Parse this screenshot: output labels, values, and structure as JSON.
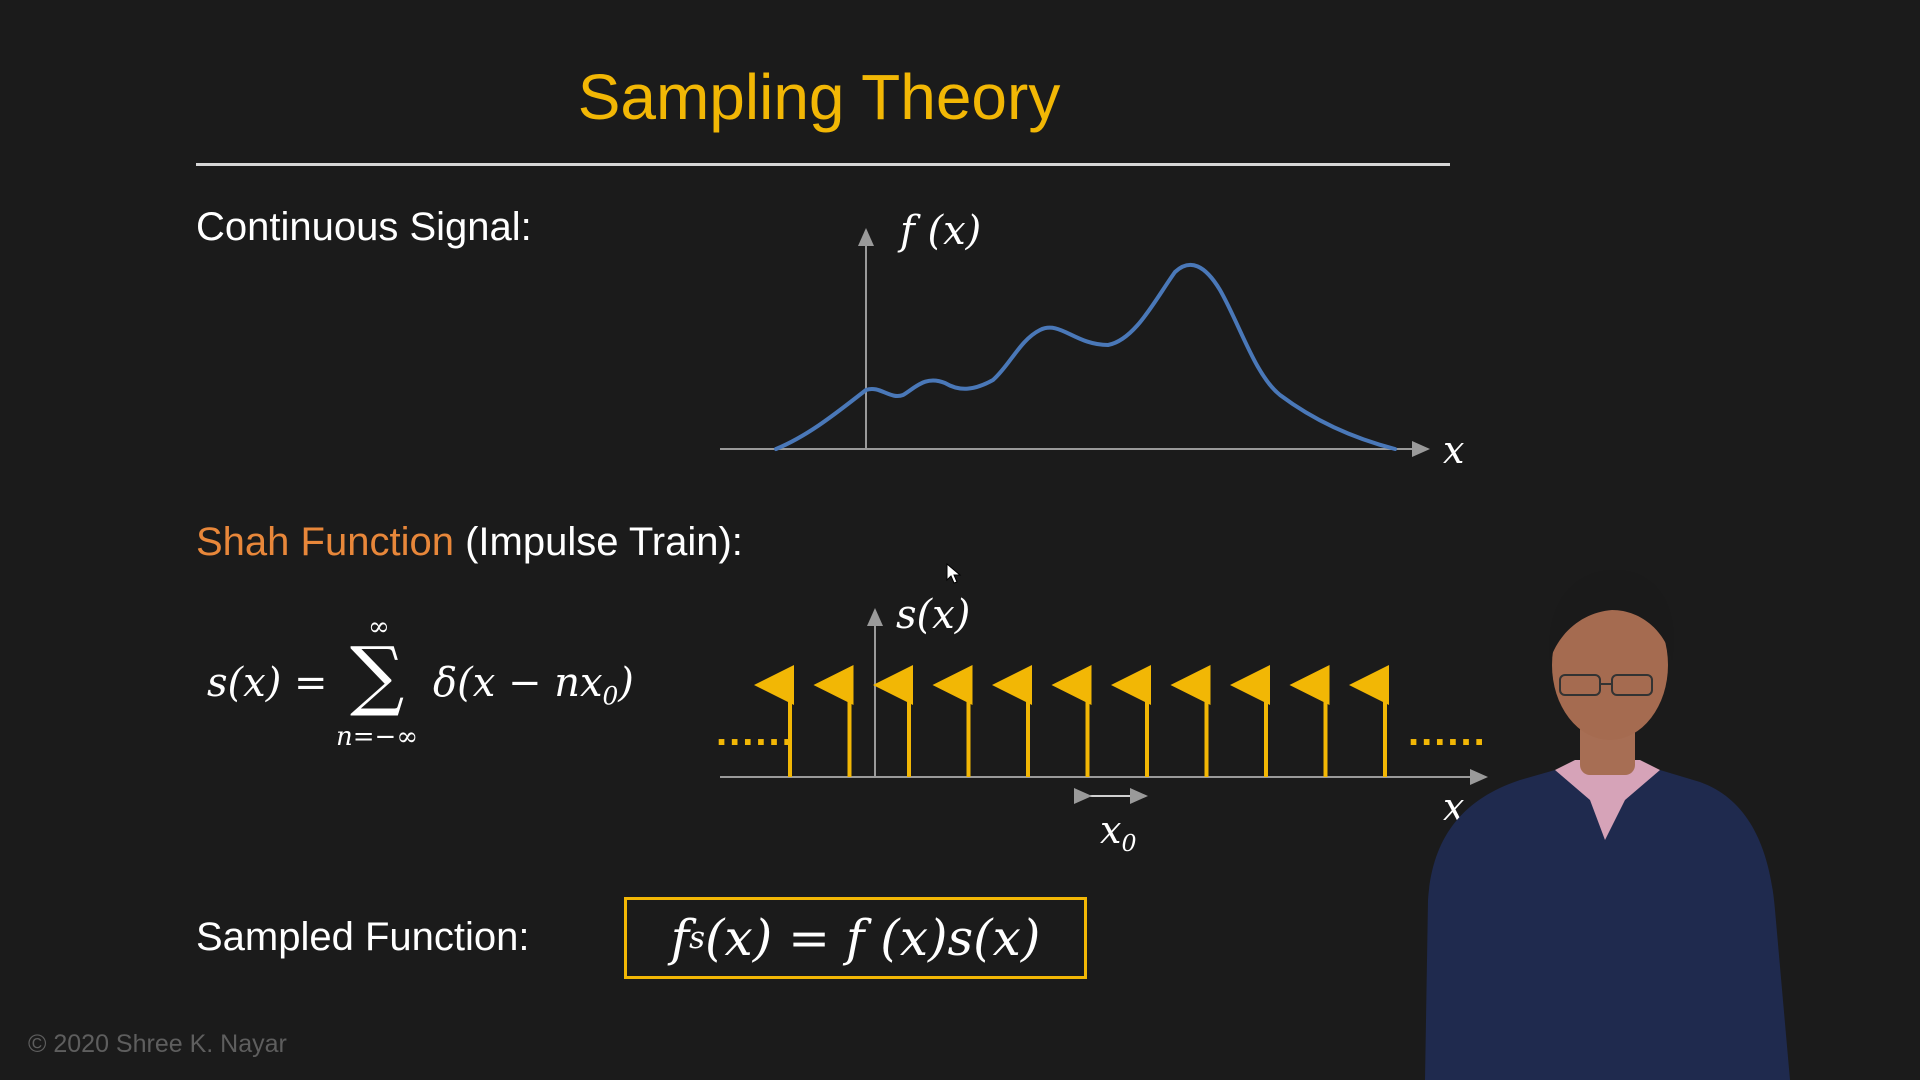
{
  "slide": {
    "title": "Sampling Theory",
    "colors": {
      "accent": "#f2b705",
      "highlight": "#e8873a",
      "signal": "#4a78b8",
      "background": "#1b1b1b"
    }
  },
  "continuous": {
    "heading": "Continuous Signal:",
    "fx_label": "f (x)",
    "x_label": "x"
  },
  "shah": {
    "heading_highlight": "Shah Function",
    "heading_rest": " (Impulse Train):",
    "formula_lhs": "s(x) = ",
    "sum_top": "∞",
    "sum_symbol": "∑",
    "sum_bottom": "n=−∞",
    "formula_rhs": "δ(x − nx",
    "formula_sub": "0",
    "formula_close": ")",
    "sx_label": "s(x)",
    "x_label": "x",
    "x0_label": "x",
    "x0_sub": "0",
    "dots": "......"
  },
  "sampled": {
    "heading": "Sampled Function:",
    "f": "f",
    "f_sub": "s",
    "rest": "(x) = f (x)s(x)"
  },
  "footer": {
    "copyright": "© 2020 Shree K. Nayar"
  }
}
